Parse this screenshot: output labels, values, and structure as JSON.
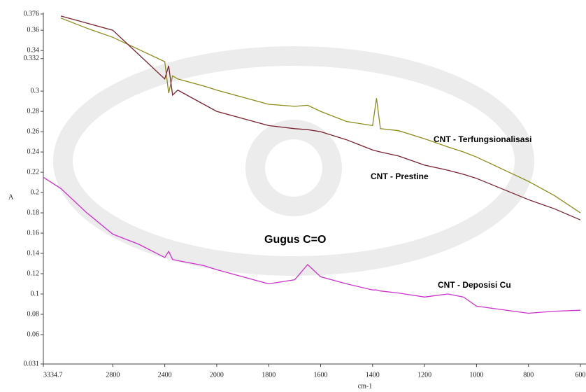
{
  "chart_data": {
    "type": "line",
    "x_label": "cm-1",
    "y_label": "A",
    "annotations": [
      "CNT - Terfungsionalisasi",
      "CNT - Prestine",
      "Gugus C=O",
      "CNT - Deposisi Cu"
    ],
    "xlim": [
      3334.7,
      600
    ],
    "xbreak": 2000,
    "xticks": [
      3334.7,
      2800,
      2400,
      2000,
      1800,
      1600,
      1400,
      1200,
      1000,
      800,
      600
    ],
    "ylim": [
      0.031,
      0.376
    ],
    "yticks": [
      0.031,
      0.06,
      0.08,
      0.1,
      0.12,
      0.14,
      0.16,
      0.18,
      0.2,
      0.22,
      0.24,
      0.26,
      0.28,
      0.3,
      0.332,
      0.34,
      0.36,
      0.376
    ],
    "x": [
      3334.7,
      3200,
      3000,
      2800,
      2600,
      2400,
      2370,
      2340,
      2300,
      2100,
      2000,
      1800,
      1700,
      1650,
      1600,
      1500,
      1400,
      1385,
      1370,
      1300,
      1200,
      1110,
      1050,
      1000,
      800,
      700,
      600
    ],
    "series": [
      {
        "name": "CNT - Terfungsionalisasi",
        "color": "#8c8c1e",
        "values": [
          null,
          0.372,
          0.362,
          0.353,
          0.341,
          0.329,
          0.298,
          0.315,
          0.312,
          0.305,
          0.301,
          0.287,
          0.285,
          0.286,
          0.28,
          0.27,
          0.266,
          0.293,
          0.263,
          0.261,
          0.253,
          0.245,
          0.24,
          0.235,
          0.211,
          0.197,
          0.18
        ]
      },
      {
        "name": "CNT - Prestine",
        "color": "#7a2230",
        "values": [
          null,
          0.374,
          0.367,
          0.36,
          0.336,
          0.312,
          0.325,
          0.296,
          0.301,
          0.287,
          0.28,
          0.266,
          0.263,
          0.262,
          0.26,
          0.252,
          0.242,
          0.241,
          0.24,
          0.236,
          0.227,
          0.222,
          0.218,
          0.214,
          0.193,
          0.184,
          0.173
        ]
      },
      {
        "name": "CNT - Deposisi Cu",
        "color": "#cc33cc",
        "values": [
          0.215,
          0.204,
          0.18,
          0.159,
          0.149,
          0.136,
          0.142,
          0.134,
          0.133,
          0.128,
          0.124,
          0.11,
          0.114,
          0.129,
          0.117,
          0.11,
          0.104,
          0.104,
          0.103,
          0.101,
          0.097,
          0.1,
          0.097,
          0.088,
          0.081,
          0.083,
          0.084
        ]
      }
    ]
  }
}
